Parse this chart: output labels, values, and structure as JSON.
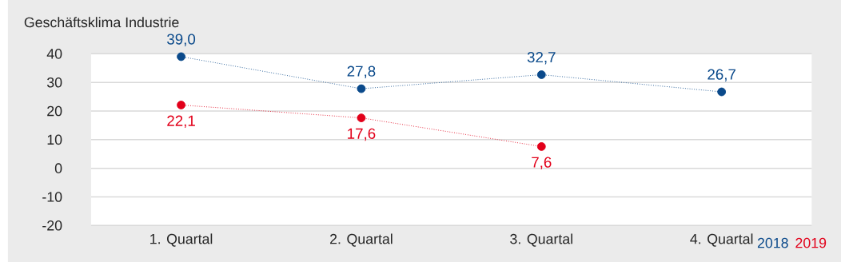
{
  "chart_data": {
    "type": "line",
    "title": "Geschäftsklima Industrie",
    "categories": [
      "1. Quartal",
      "2. Quartal",
      "3. Quartal",
      "4. Quartal"
    ],
    "series": [
      {
        "name": "2018",
        "color": "#0b4a8b",
        "values": [
          39.0,
          27.8,
          32.7,
          26.7
        ],
        "value_labels": [
          "39,0",
          "27,8",
          "32,7",
          "26,7"
        ]
      },
      {
        "name": "2019",
        "color": "#e2001a",
        "values": [
          22.1,
          17.6,
          7.6,
          null
        ],
        "value_labels": [
          "22,1",
          "17,6",
          "7,6",
          null
        ]
      }
    ],
    "ylim": [
      -20,
      40
    ],
    "yticks": [
      -20,
      -10,
      0,
      10,
      20,
      30,
      40
    ],
    "grid": "y",
    "legend": "bottom right",
    "marker": "circle",
    "line_style": "dotted"
  }
}
